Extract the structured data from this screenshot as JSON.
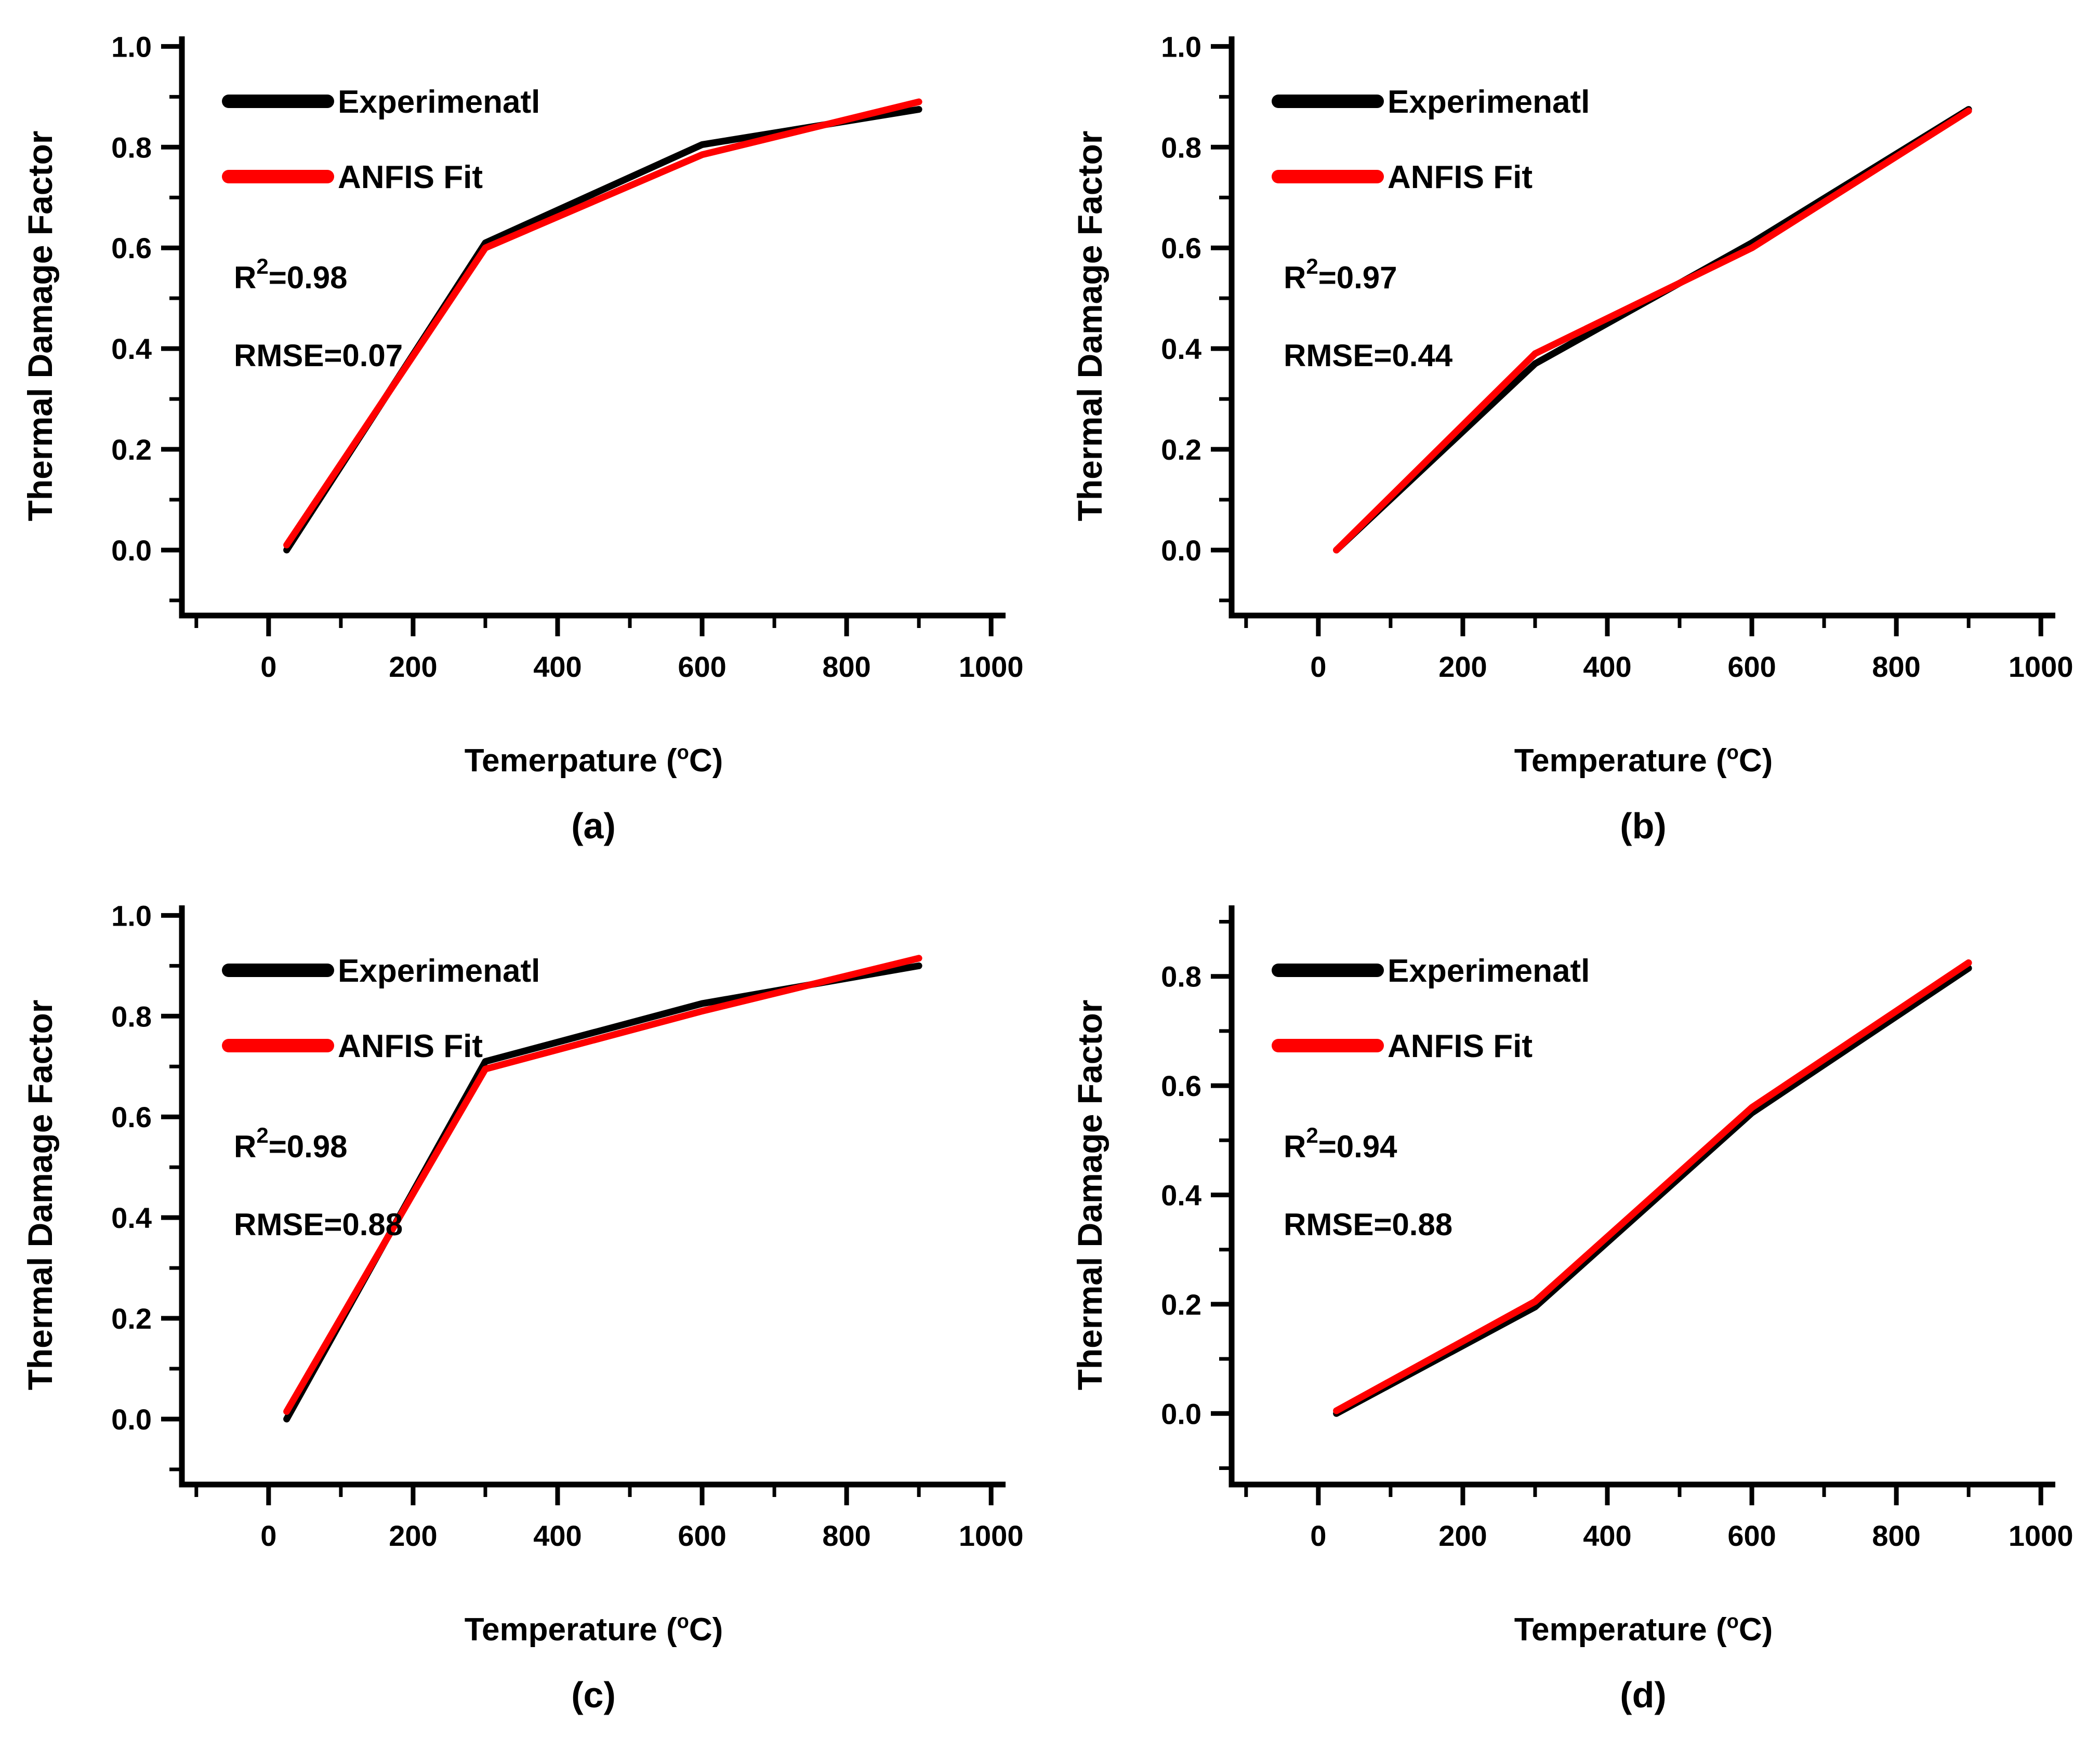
{
  "figure": {
    "background": "#ffffff"
  },
  "colors": {
    "experimental": "#000000",
    "anfis_fit": "#ff0000",
    "axis": "#000000"
  },
  "chart_data": [
    {
      "type": "line",
      "sublabel": "(a)",
      "xlabel": {
        "pre": "Temerpature (",
        "sup": "o",
        "post": "C)"
      },
      "ylabel": "Thermal Damage Factor",
      "legend_position": "top-left-inside",
      "grid": "off",
      "x_axis": {
        "min": -120,
        "max": 1020,
        "major": [
          0,
          200,
          400,
          600,
          800,
          1000
        ],
        "labels": [
          "0",
          "200",
          "400",
          "600",
          "800",
          "1000"
        ],
        "minor": [
          -100,
          100,
          300,
          500,
          700,
          900
        ]
      },
      "y_axis": {
        "min": -0.13,
        "max": 1.02,
        "major": [
          0,
          0.2,
          0.4,
          0.6,
          0.8,
          1.0
        ],
        "labels": [
          "0.0",
          "0.2",
          "0.4",
          "0.6",
          "0.8",
          "1.0"
        ],
        "minor": [
          -0.1,
          0.1,
          0.3,
          0.5,
          0.7,
          0.9
        ]
      },
      "x": [
        25,
        300,
        600,
        900
      ],
      "series": [
        {
          "name": "Experimenatl",
          "color": "#000000",
          "y": [
            0.0,
            0.61,
            0.805,
            0.875
          ]
        },
        {
          "name": "ANFIS Fit",
          "color": "#ff0000",
          "y": [
            0.01,
            0.6,
            0.785,
            0.89
          ]
        }
      ],
      "legend": [
        "Experimenatl",
        "ANFIS Fit"
      ],
      "stats": {
        "r2_base": "R",
        "r2_sup": "2",
        "r2_rest": "=0.98",
        "rmse": "RMSE=0.07"
      }
    },
    {
      "type": "line",
      "sublabel": "(b)",
      "xlabel": {
        "pre": "Temperature (",
        "sup": "o",
        "post": "C)"
      },
      "ylabel": "Thermal Damage Factor",
      "legend_position": "top-left-inside",
      "grid": "off",
      "x_axis": {
        "min": -120,
        "max": 1020,
        "major": [
          0,
          200,
          400,
          600,
          800,
          1000
        ],
        "labels": [
          "0",
          "200",
          "400",
          "600",
          "800",
          "1000"
        ],
        "minor": [
          -100,
          100,
          300,
          500,
          700,
          900
        ]
      },
      "y_axis": {
        "min": -0.13,
        "max": 1.02,
        "major": [
          0,
          0.2,
          0.4,
          0.6,
          0.8,
          1.0
        ],
        "labels": [
          "0.0",
          "0.2",
          "0.4",
          "0.6",
          "0.8",
          "1.0"
        ],
        "minor": [
          -0.1,
          0.1,
          0.3,
          0.5,
          0.7,
          0.9
        ]
      },
      "x": [
        25,
        300,
        600,
        900
      ],
      "series": [
        {
          "name": "Experimenatl",
          "color": "#000000",
          "y": [
            0.0,
            0.37,
            0.61,
            0.875
          ]
        },
        {
          "name": "ANFIS Fit",
          "color": "#ff0000",
          "y": [
            0.0,
            0.39,
            0.6,
            0.872
          ]
        }
      ],
      "legend": [
        "Experimenatl",
        "ANFIS Fit"
      ],
      "stats": {
        "r2_base": "R",
        "r2_sup": "2",
        "r2_rest": "=0.97",
        "rmse": "RMSE=0.44"
      }
    },
    {
      "type": "line",
      "sublabel": "(c)",
      "xlabel": {
        "pre": "Temperature (",
        "sup": "o",
        "post": "C)"
      },
      "ylabel": "Thermal Damage Factor",
      "legend_position": "top-left-inside",
      "grid": "off",
      "x_axis": {
        "min": -120,
        "max": 1020,
        "major": [
          0,
          200,
          400,
          600,
          800,
          1000
        ],
        "labels": [
          "0",
          "200",
          "400",
          "600",
          "800",
          "1000"
        ],
        "minor": [
          -100,
          100,
          300,
          500,
          700,
          900
        ]
      },
      "y_axis": {
        "min": -0.13,
        "max": 1.02,
        "major": [
          0,
          0.2,
          0.4,
          0.6,
          0.8,
          1.0
        ],
        "labels": [
          "0.0",
          "0.2",
          "0.4",
          "0.6",
          "0.8",
          "1.0"
        ],
        "minor": [
          -0.1,
          0.1,
          0.3,
          0.5,
          0.7,
          0.9
        ]
      },
      "x": [
        25,
        300,
        600,
        900
      ],
      "series": [
        {
          "name": "Experimenatl",
          "color": "#000000",
          "y": [
            0.0,
            0.71,
            0.825,
            0.9
          ]
        },
        {
          "name": "ANFIS Fit",
          "color": "#ff0000",
          "y": [
            0.015,
            0.695,
            0.81,
            0.915
          ]
        }
      ],
      "legend": [
        "Experimenatl",
        "ANFIS Fit"
      ],
      "stats": {
        "r2_base": "R",
        "r2_sup": "2",
        "r2_rest": "=0.98",
        "rmse": "RMSE=0.88"
      }
    },
    {
      "type": "line",
      "sublabel": "(d)",
      "xlabel": {
        "pre": "Temperature (",
        "sup": "o",
        "post": "C)"
      },
      "ylabel": "Thermal Damage Factor",
      "legend_position": "top-left-inside",
      "grid": "off",
      "x_axis": {
        "min": -120,
        "max": 1020,
        "major": [
          0,
          200,
          400,
          600,
          800,
          1000
        ],
        "labels": [
          "0",
          "200",
          "400",
          "600",
          "800",
          "1000"
        ],
        "minor": [
          -100,
          100,
          300,
          500,
          700,
          900
        ]
      },
      "y_axis": {
        "min": -0.13,
        "max": 0.93,
        "major": [
          0,
          0.2,
          0.4,
          0.6,
          0.8
        ],
        "labels": [
          "0.0",
          "0.2",
          "0.4",
          "0.6",
          "0.8"
        ],
        "minor": [
          -0.1,
          0.1,
          0.3,
          0.5,
          0.7,
          0.9
        ]
      },
      "x": [
        25,
        300,
        600,
        900
      ],
      "series": [
        {
          "name": "Experimenatl",
          "color": "#000000",
          "y": [
            0.0,
            0.195,
            0.55,
            0.815
          ]
        },
        {
          "name": "ANFIS Fit",
          "color": "#ff0000",
          "y": [
            0.005,
            0.205,
            0.56,
            0.825
          ]
        }
      ],
      "legend": [
        "Experimenatl",
        "ANFIS Fit"
      ],
      "stats": {
        "r2_base": "R",
        "r2_sup": "2",
        "r2_rest": "=0.94",
        "rmse": "RMSE=0.88"
      }
    }
  ]
}
